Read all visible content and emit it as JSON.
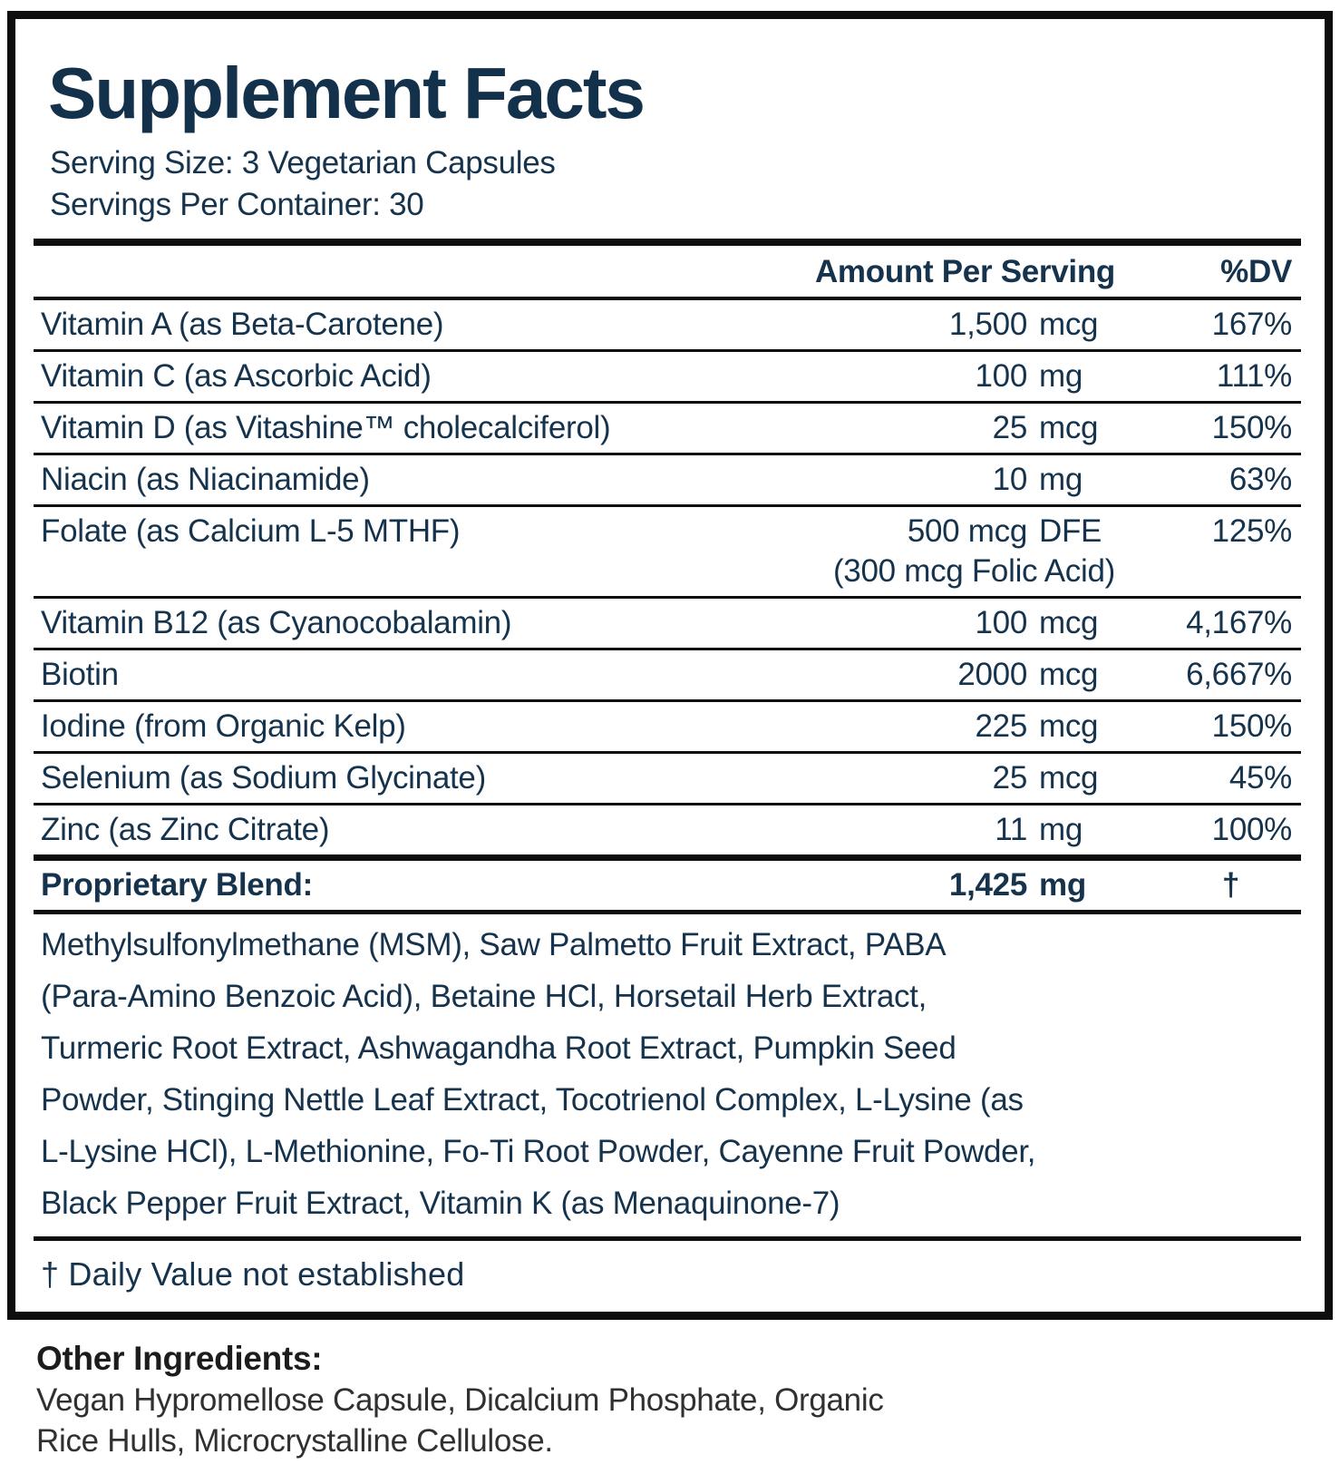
{
  "label": {
    "title": "Supplement Facts",
    "serving_size": "Serving Size: 3 Vegetarian Capsules",
    "servings_per_container": "Servings Per Container: 30",
    "header": {
      "amount": "Amount Per Serving",
      "dv": "%DV"
    },
    "rows": [
      {
        "name": "Vitamin A (as Beta-Carotene)",
        "amount": "1,500",
        "unit": "mcg",
        "dv": "167%"
      },
      {
        "name": "Vitamin C (as Ascorbic Acid)",
        "amount": "100",
        "unit": "mg",
        "dv": "111%"
      },
      {
        "name": "Vitamin D (as Vitashine™ cholecalciferol)",
        "amount": "25",
        "unit": "mcg",
        "dv": "150%"
      },
      {
        "name": "Niacin (as Niacinamide)",
        "amount": "10",
        "unit": "mg",
        "dv": "63%"
      },
      {
        "name": "Folate (as Calcium L-5 MTHF)",
        "amount": "500 mcg",
        "unit": "DFE",
        "dv": "125%",
        "note": "(300 mcg Folic Acid)"
      },
      {
        "name": "Vitamin B12 (as Cyanocobalamin)",
        "amount": "100",
        "unit": "mcg",
        "dv": "4,167%"
      },
      {
        "name": "Biotin",
        "amount": "2000",
        "unit": "mcg",
        "dv": "6,667%"
      },
      {
        "name": "Iodine (from Organic Kelp)",
        "amount": "225",
        "unit": "mcg",
        "dv": "150%"
      },
      {
        "name": "Selenium (as Sodium Glycinate)",
        "amount": "25",
        "unit": "mcg",
        "dv": "45%"
      },
      {
        "name": "Zinc (as Zinc Citrate)",
        "amount": "11",
        "unit": "mg",
        "dv": "100%"
      }
    ],
    "blend": {
      "name": "Proprietary Blend:",
      "amount": "1,425",
      "unit": "mg",
      "dv": "†",
      "lines": [
        "Methylsulfonylmethane (MSM), Saw Palmetto Fruit Extract, PABA",
        "(Para-Amino Benzoic Acid), Betaine HCl, Horsetail Herb Extract,",
        "Turmeric Root Extract, Ashwagandha Root Extract, Pumpkin Seed",
        "Powder, Stinging Nettle Leaf Extract, Tocotrienol Complex, L-Lysine (as",
        "L-Lysine HCl), L-Methionine, Fo-Ti Root Powder, Cayenne Fruit Powder,",
        "Black Pepper Fruit Extract, Vitamin K (as Menaquinone-7)"
      ]
    },
    "footnote": "† Daily Value not established",
    "other_ingredients": {
      "heading": "Other Ingredients:",
      "lines": [
        "Vegan Hypromellose Capsule, Dicalcium Phosphate, Organic",
        "Rice Hulls, Microcrystalline Cellulose."
      ]
    }
  },
  "colors": {
    "navy_text": "#16334d",
    "title_navy": "#14314b",
    "rule_black": "#0e0e0e",
    "other_heading_black": "#1c1c1c",
    "other_body_gray": "#303030",
    "background": "#ffffff"
  }
}
